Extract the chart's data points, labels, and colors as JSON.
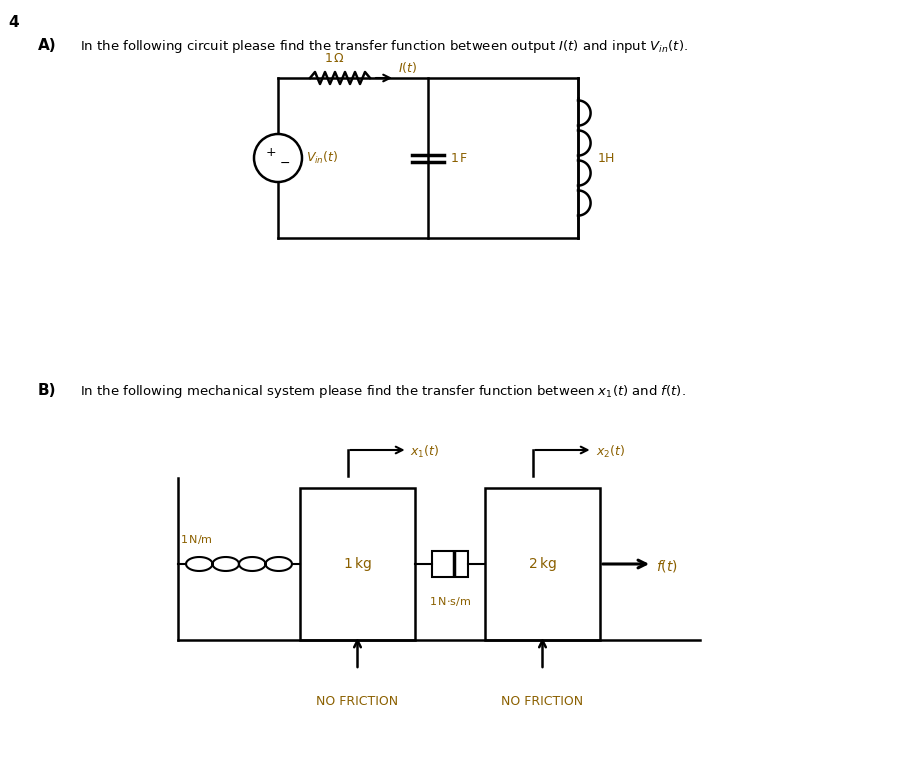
{
  "bg_color": "#ffffff",
  "text_color": "#000000",
  "orange": "#8B6000",
  "fig_width": 9.08,
  "fig_height": 7.61,
  "page_num": "4",
  "part_a_label": "A)",
  "part_a_text": "In the following circuit please find the transfer function between output $I(t)$ and input $V_{in}(t)$.",
  "part_b_label": "B)",
  "part_b_text": "In the following mechanical system please find the transfer function between $x_1(t)$ and $f(t)$."
}
